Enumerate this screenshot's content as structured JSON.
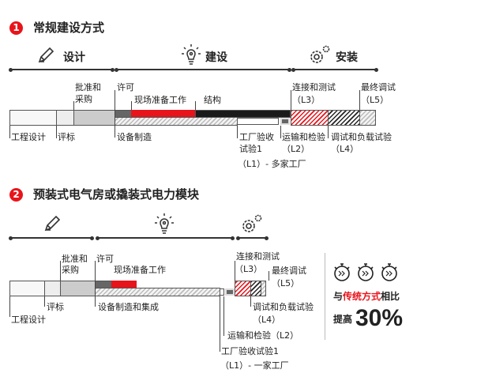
{
  "section1": {
    "number": "1",
    "title": "常规建设方式",
    "phases": [
      "设计",
      "建设",
      "安装"
    ],
    "labels": {
      "approval": "批准和",
      "procurement": "采购",
      "permit": "许可",
      "site_prep": "现场准备工作",
      "structure": "结构",
      "connect": "连接和测试",
      "l3": "（L3）",
      "final": "最终调试",
      "l5": "（L5）",
      "design": "工程设计",
      "bid": "评标",
      "manufacture": "设备制造",
      "fat": "工厂验收",
      "fat2": "试验1",
      "l1": "（L1）- 多家工厂",
      "transport": "运输和检验",
      "l2": "（L2）",
      "commission": "调试和负载试验",
      "l4": "（L4）"
    }
  },
  "section2": {
    "number": "2",
    "title": "预装式电气房或撬装式电力模块",
    "labels": {
      "approval": "批准和",
      "procurement": "采购",
      "permit": "许可",
      "site_prep": "现场准备工作",
      "connect": "连接和测试",
      "l3": "（L3）",
      "final": "最终调试",
      "l5": "（L5）",
      "design": "工程设计",
      "bid": "评标",
      "manufacture": "设备制造和集成",
      "commission": "调试和负载试验",
      "l4": "（L4）",
      "transport": "运输和检验（L2）",
      "fat": "工厂验收试验1",
      "l1": "（L1）- 一家工厂"
    }
  },
  "summary": {
    "prefix": "与",
    "highlight": "传统方式",
    "suffix": "相比",
    "improve": "提高",
    "value": "30%"
  },
  "colors": {
    "accent": "#e8141b",
    "dark": "#1a1a1a"
  },
  "icons": [
    "pencil-icon",
    "lightbulb-icon",
    "gears-icon",
    "stopwatch-icon"
  ]
}
